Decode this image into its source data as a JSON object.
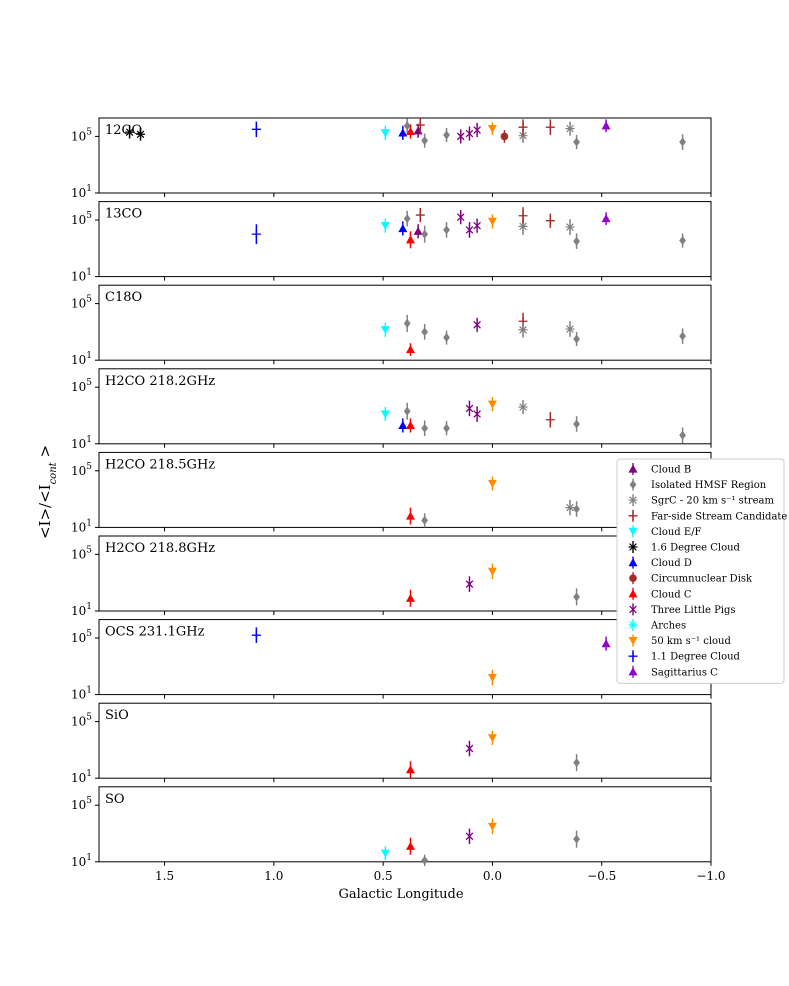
{
  "chart_data": {
    "type": "scatter",
    "xlabel": "Galactic Longitude",
    "ylabel": "<I>/<I",
    "ylabel_sub": "cont",
    "ylabel_end": " >",
    "xlim": [
      1.8,
      -1.0
    ],
    "ylim_log10": [
      1,
      6.3
    ],
    "xticks": [
      {
        "value": 1.5,
        "label": "1.5"
      },
      {
        "value": 1.0,
        "label": "1.0"
      },
      {
        "value": 0.5,
        "label": "0.5"
      },
      {
        "value": 0.0,
        "label": "0.0"
      },
      {
        "value": -0.5,
        "label": "−0.5"
      },
      {
        "value": -1.0,
        "label": "−1.0"
      }
    ],
    "yticks": [
      {
        "exp": 1,
        "base": "10",
        "sup": "1"
      },
      {
        "exp": 5,
        "base": "10",
        "sup": "5"
      }
    ],
    "sources": [
      {
        "key": "B",
        "name": "Cloud B",
        "color": "#800080",
        "marker": "tri_up"
      },
      {
        "key": "HMSF",
        "name": "Isolated HMSF Region",
        "color": "#808080",
        "marker": "diamond"
      },
      {
        "key": "SGRC20",
        "name": "SgrC - 20 km s⁻¹ stream",
        "color": "#808080",
        "marker": "star"
      },
      {
        "key": "FAR",
        "name": "Far-side Stream Candidate",
        "color": "#a52a2a",
        "marker": "plus"
      },
      {
        "key": "EF",
        "name": "Cloud E/F",
        "color": "#00ffff",
        "marker": "tri_down"
      },
      {
        "key": "D16",
        "name": "1.6 Degree Cloud",
        "color": "#000000",
        "marker": "star"
      },
      {
        "key": "D",
        "name": "Cloud D",
        "color": "#0000ff",
        "marker": "tri_up"
      },
      {
        "key": "CND",
        "name": "Circumnuclear Disk",
        "color": "#a52a2a",
        "marker": "circle"
      },
      {
        "key": "C",
        "name": "Cloud C",
        "color": "#ff0000",
        "marker": "tri_up"
      },
      {
        "key": "TLP",
        "name": "Three Little Pigs",
        "color": "#800080",
        "marker": "x"
      },
      {
        "key": "ARCH",
        "name": "Arches",
        "color": "#00ffff",
        "marker": "star"
      },
      {
        "key": "C50",
        "name": "50 km s⁻¹ cloud",
        "color": "#ff8c00",
        "marker": "tri_down"
      },
      {
        "key": "D11",
        "name": "1.1 Degree Cloud",
        "color": "#0000ff",
        "marker": "plus"
      },
      {
        "key": "SGRC",
        "name": "Sagittarius C",
        "color": "#9400d3",
        "marker": "tri_up"
      }
    ],
    "panels": [
      {
        "label": "12CO",
        "points": [
          {
            "s": "D16",
            "x": 1.66,
            "y": 5.3,
            "err": 0.45
          },
          {
            "s": "D16",
            "x": 1.61,
            "y": 5.15,
            "err": 0.45
          },
          {
            "s": "D11",
            "x": 1.08,
            "y": 5.5,
            "err": 0.55
          },
          {
            "s": "EF",
            "x": 0.49,
            "y": 5.25,
            "err": 0.5
          },
          {
            "s": "D",
            "x": 0.41,
            "y": 5.25,
            "err": 0.5
          },
          {
            "s": "HMSF",
            "x": 0.39,
            "y": 5.75,
            "err": 0.5
          },
          {
            "s": "C",
            "x": 0.375,
            "y": 5.35,
            "err": 0.5
          },
          {
            "s": "B",
            "x": 0.34,
            "y": 5.4,
            "err": 0.5
          },
          {
            "s": "FAR",
            "x": 0.33,
            "y": 5.8,
            "err": 0.5
          },
          {
            "s": "HMSF",
            "x": 0.31,
            "y": 4.7,
            "err": 0.5
          },
          {
            "s": "HMSF",
            "x": 0.21,
            "y": 5.1,
            "err": 0.5
          },
          {
            "s": "TLP",
            "x": 0.145,
            "y": 5.0,
            "err": 0.5
          },
          {
            "s": "TLP",
            "x": 0.105,
            "y": 5.2,
            "err": 0.5
          },
          {
            "s": "TLP",
            "x": 0.07,
            "y": 5.45,
            "err": 0.5
          },
          {
            "s": "C50",
            "x": 0.0,
            "y": 5.55,
            "err": 0.45
          },
          {
            "s": "CND",
            "x": -0.055,
            "y": 5.0,
            "err": 0.45
          },
          {
            "s": "SGRC20",
            "x": -0.14,
            "y": 5.05,
            "err": 0.5
          },
          {
            "s": "FAR",
            "x": -0.14,
            "y": 5.65,
            "err": 0.55
          },
          {
            "s": "FAR",
            "x": -0.265,
            "y": 5.65,
            "err": 0.55
          },
          {
            "s": "SGRC20",
            "x": -0.355,
            "y": 5.55,
            "err": 0.5
          },
          {
            "s": "HMSF",
            "x": -0.385,
            "y": 4.6,
            "err": 0.5
          },
          {
            "s": "SGRC",
            "x": -0.52,
            "y": 5.75,
            "err": 0.45
          },
          {
            "s": "HMSF",
            "x": -0.87,
            "y": 4.6,
            "err": 0.55
          }
        ]
      },
      {
        "label": "13CO",
        "points": [
          {
            "s": "D11",
            "x": 1.08,
            "y": 4.0,
            "err": 0.7
          },
          {
            "s": "EF",
            "x": 0.49,
            "y": 4.6,
            "err": 0.5
          },
          {
            "s": "D",
            "x": 0.41,
            "y": 4.4,
            "err": 0.5
          },
          {
            "s": "HMSF",
            "x": 0.39,
            "y": 5.1,
            "err": 0.55
          },
          {
            "s": "C",
            "x": 0.375,
            "y": 3.6,
            "err": 0.6
          },
          {
            "s": "B",
            "x": 0.34,
            "y": 4.2,
            "err": 0.5
          },
          {
            "s": "FAR",
            "x": 0.33,
            "y": 5.35,
            "err": 0.5
          },
          {
            "s": "HMSF",
            "x": 0.31,
            "y": 4.0,
            "err": 0.6
          },
          {
            "s": "HMSF",
            "x": 0.21,
            "y": 4.3,
            "err": 0.55
          },
          {
            "s": "TLP",
            "x": 0.145,
            "y": 5.2,
            "err": 0.5
          },
          {
            "s": "TLP",
            "x": 0.105,
            "y": 4.3,
            "err": 0.55
          },
          {
            "s": "TLP",
            "x": 0.07,
            "y": 4.6,
            "err": 0.5
          },
          {
            "s": "C50",
            "x": 0.0,
            "y": 4.9,
            "err": 0.5
          },
          {
            "s": "SGRC20",
            "x": -0.14,
            "y": 4.55,
            "err": 0.6
          },
          {
            "s": "FAR",
            "x": -0.14,
            "y": 5.3,
            "err": 0.6
          },
          {
            "s": "FAR",
            "x": -0.265,
            "y": 4.95,
            "err": 0.5
          },
          {
            "s": "SGRC20",
            "x": -0.355,
            "y": 4.5,
            "err": 0.55
          },
          {
            "s": "HMSF",
            "x": -0.385,
            "y": 3.5,
            "err": 0.55
          },
          {
            "s": "SGRC",
            "x": -0.52,
            "y": 5.1,
            "err": 0.45
          },
          {
            "s": "HMSF",
            "x": -0.87,
            "y": 3.55,
            "err": 0.5
          }
        ]
      },
      {
        "label": "C18O",
        "points": [
          {
            "s": "EF",
            "x": 0.49,
            "y": 3.15,
            "err": 0.5
          },
          {
            "s": "HMSF",
            "x": 0.39,
            "y": 3.6,
            "err": 0.6
          },
          {
            "s": "C",
            "x": 0.375,
            "y": 1.75,
            "err": 0.45
          },
          {
            "s": "HMSF",
            "x": 0.31,
            "y": 3.0,
            "err": 0.55
          },
          {
            "s": "HMSF",
            "x": 0.21,
            "y": 2.6,
            "err": 0.5
          },
          {
            "s": "TLP",
            "x": 0.07,
            "y": 3.5,
            "err": 0.5
          },
          {
            "s": "FAR",
            "x": -0.14,
            "y": 3.75,
            "err": 0.6
          },
          {
            "s": "SGRC20",
            "x": -0.14,
            "y": 3.15,
            "err": 0.55
          },
          {
            "s": "SGRC20",
            "x": -0.355,
            "y": 3.2,
            "err": 0.55
          },
          {
            "s": "HMSF",
            "x": -0.385,
            "y": 2.5,
            "err": 0.5
          },
          {
            "s": "HMSF",
            "x": -0.87,
            "y": 2.7,
            "err": 0.55
          }
        ]
      },
      {
        "label": "H2CO 218.2GHz",
        "points": [
          {
            "s": "EF",
            "x": 0.49,
            "y": 3.1,
            "err": 0.5
          },
          {
            "s": "HMSF",
            "x": 0.39,
            "y": 3.3,
            "err": 0.6
          },
          {
            "s": "D",
            "x": 0.41,
            "y": 2.3,
            "err": 0.5
          },
          {
            "s": "C",
            "x": 0.375,
            "y": 2.3,
            "err": 0.5
          },
          {
            "s": "HMSF",
            "x": 0.31,
            "y": 2.1,
            "err": 0.55
          },
          {
            "s": "HMSF",
            "x": 0.21,
            "y": 2.1,
            "err": 0.5
          },
          {
            "s": "TLP",
            "x": 0.105,
            "y": 3.5,
            "err": 0.55
          },
          {
            "s": "TLP",
            "x": 0.07,
            "y": 3.1,
            "err": 0.55
          },
          {
            "s": "C50",
            "x": 0.0,
            "y": 3.8,
            "err": 0.5
          },
          {
            "s": "SGRC20",
            "x": -0.14,
            "y": 3.6,
            "err": 0.5
          },
          {
            "s": "FAR",
            "x": -0.265,
            "y": 2.7,
            "err": 0.55
          },
          {
            "s": "HMSF",
            "x": -0.385,
            "y": 2.4,
            "err": 0.55
          },
          {
            "s": "HMSF",
            "x": -0.87,
            "y": 1.6,
            "err": 0.55
          }
        ]
      },
      {
        "label": "H2CO 218.5GHz",
        "points": [
          {
            "s": "C",
            "x": 0.375,
            "y": 1.8,
            "err": 0.6
          },
          {
            "s": "HMSF",
            "x": 0.31,
            "y": 1.5,
            "err": 0.5
          },
          {
            "s": "C50",
            "x": 0.0,
            "y": 4.1,
            "err": 0.5
          },
          {
            "s": "SGRC20",
            "x": -0.355,
            "y": 2.4,
            "err": 0.55
          },
          {
            "s": "HMSF",
            "x": -0.385,
            "y": 2.3,
            "err": 0.55
          }
        ]
      },
      {
        "label": "H2CO 218.8GHz",
        "points": [
          {
            "s": "C",
            "x": 0.375,
            "y": 1.9,
            "err": 0.6
          },
          {
            "s": "TLP",
            "x": 0.105,
            "y": 2.9,
            "err": 0.55
          },
          {
            "s": "C50",
            "x": 0.0,
            "y": 3.8,
            "err": 0.55
          },
          {
            "s": "HMSF",
            "x": -0.385,
            "y": 2.0,
            "err": 0.6
          }
        ]
      },
      {
        "label": "OCS 231.1GHz",
        "points": [
          {
            "s": "D11",
            "x": 1.08,
            "y": 5.2,
            "err": 0.55
          },
          {
            "s": "C50",
            "x": 0.0,
            "y": 2.2,
            "err": 0.55
          },
          {
            "s": "SGRC",
            "x": -0.52,
            "y": 4.6,
            "err": 0.5
          }
        ]
      },
      {
        "label": "SiO",
        "points": [
          {
            "s": "C",
            "x": 0.375,
            "y": 1.6,
            "err": 0.6
          },
          {
            "s": "TLP",
            "x": 0.105,
            "y": 3.1,
            "err": 0.55
          },
          {
            "s": "C50",
            "x": 0.0,
            "y": 3.85,
            "err": 0.5
          },
          {
            "s": "HMSF",
            "x": -0.385,
            "y": 2.1,
            "err": 0.6
          }
        ]
      },
      {
        "label": "SO",
        "points": [
          {
            "s": "EF",
            "x": 0.49,
            "y": 1.6,
            "err": 0.5
          },
          {
            "s": "C",
            "x": 0.375,
            "y": 2.1,
            "err": 0.6
          },
          {
            "s": "HMSF",
            "x": 0.31,
            "y": 1.1,
            "err": 0.4
          },
          {
            "s": "TLP",
            "x": 0.105,
            "y": 2.8,
            "err": 0.55
          },
          {
            "s": "C50",
            "x": 0.0,
            "y": 3.5,
            "err": 0.55
          },
          {
            "s": "HMSF",
            "x": -0.385,
            "y": 2.6,
            "err": 0.6
          }
        ]
      }
    ]
  }
}
